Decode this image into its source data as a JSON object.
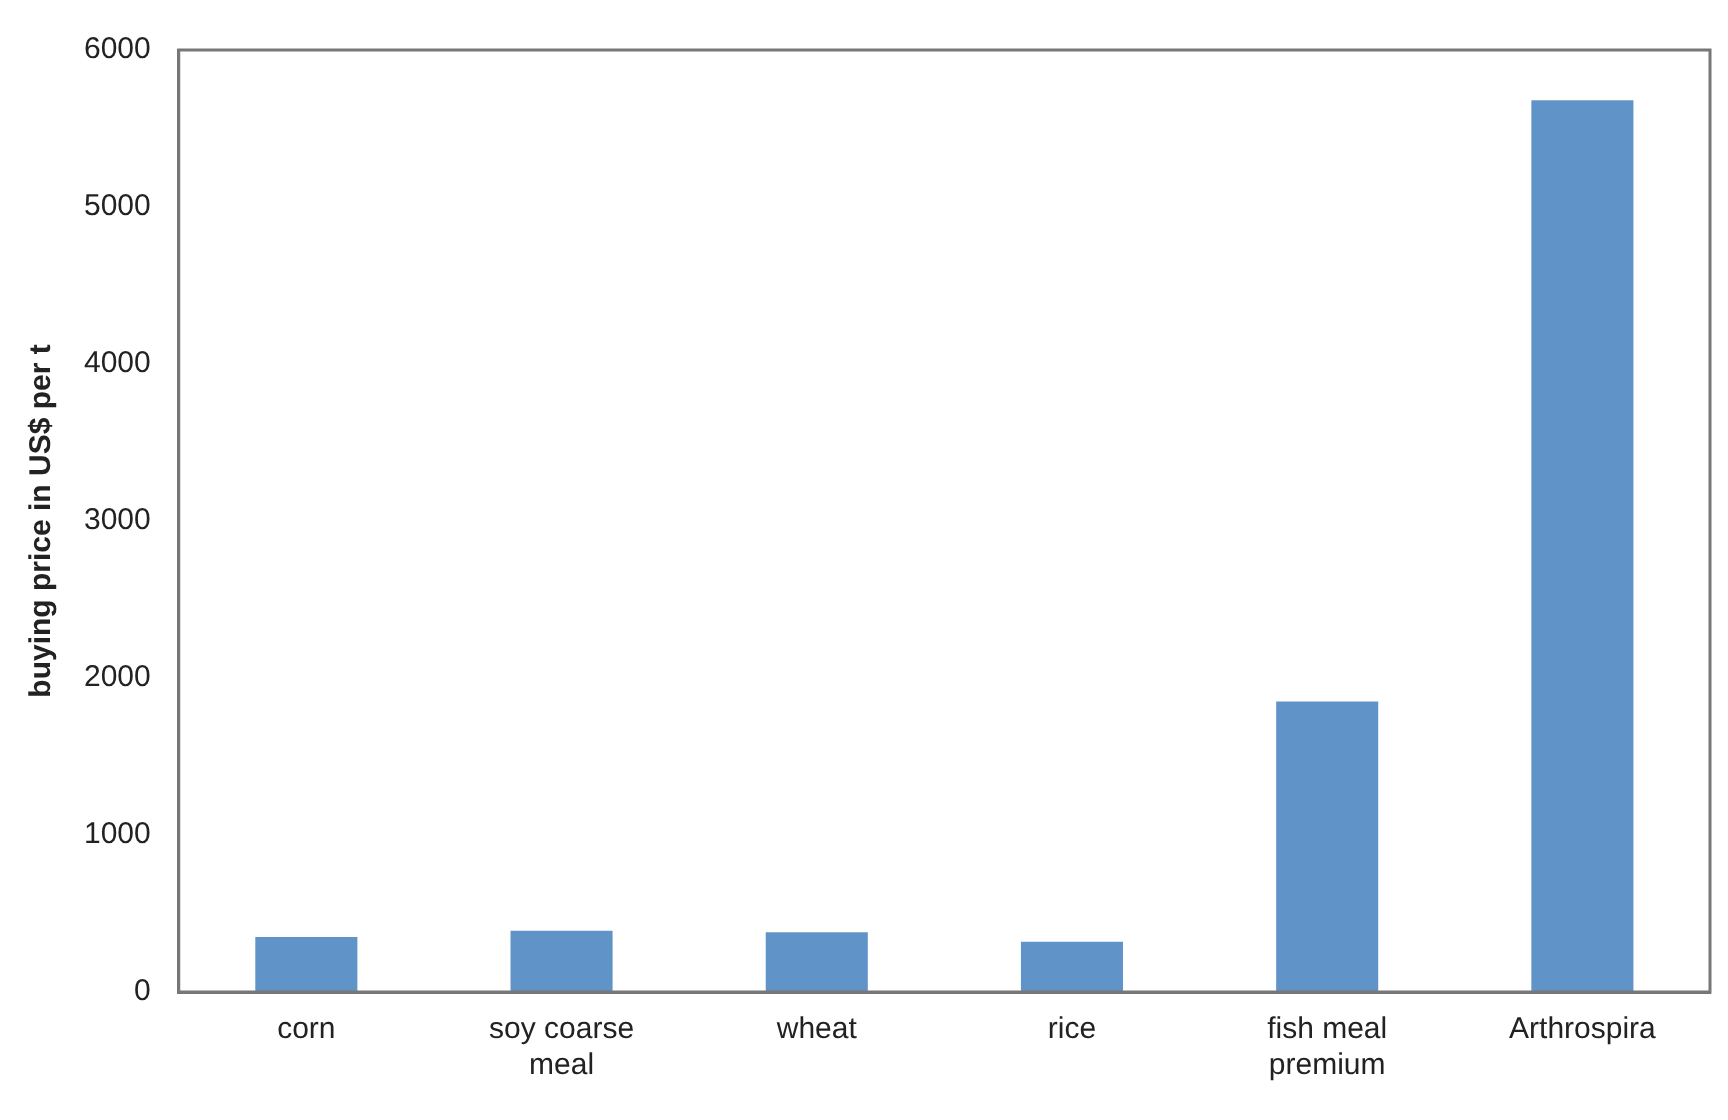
{
  "chart_data": {
    "type": "bar",
    "ylabel": "buying price in US$ per t",
    "categories": [
      "corn",
      "soy coarse meal",
      "wheat",
      "rice",
      "fish meal premium",
      "Arthrospira"
    ],
    "values": [
      350,
      390,
      380,
      320,
      1850,
      5680
    ],
    "color": "#6094c8",
    "ylim": [
      0,
      6000
    ],
    "yticks": [
      0,
      1000,
      2000,
      3000,
      4000,
      5000,
      6000
    ],
    "grid": false,
    "legend": false
  }
}
